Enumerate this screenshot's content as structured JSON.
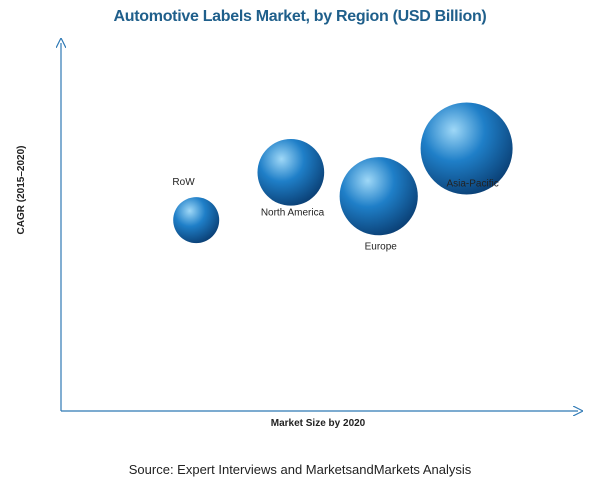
{
  "colors": {
    "title": "#1f5f8b",
    "axis": "#2e79b5",
    "bubble_light": "#9fd8f7",
    "bubble_mid": "#1f7fc8",
    "bubble_dark": "#0a3e73",
    "text": "#222222"
  },
  "chart_data": {
    "type": "scatter",
    "title": "Automotive Labels Market, by Region (USD Billion)",
    "xlabel": "Market Size by 2020",
    "ylabel": "CAGR  (2015–2020)",
    "grid": false,
    "legend": "none",
    "axis_ticks": "none",
    "bubble_scale": "bubble size proportional to market size",
    "points": [
      {
        "label": "RoW",
        "x": 2.0,
        "y": 4.8,
        "size": 1.0
      },
      {
        "label": "North America",
        "x": 3.4,
        "y": 6.0,
        "size": 1.45
      },
      {
        "label": "Europe",
        "x": 4.7,
        "y": 5.4,
        "size": 1.7
      },
      {
        "label": "Asia-Pacific",
        "x": 6.0,
        "y": 6.6,
        "size": 2.0
      }
    ]
  },
  "footer": {
    "source": "Source: Expert Interviews and MarketsandMarkets Analysis"
  }
}
